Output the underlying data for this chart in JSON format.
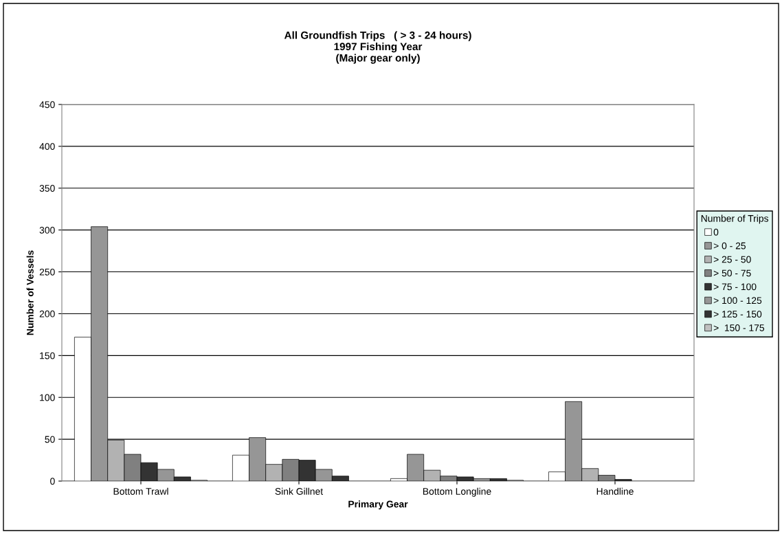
{
  "chart_data": {
    "type": "bar",
    "title": "All Groundfish Trips   ( > 3 - 24 hours)\n1997 Fishing Year\n(Major gear only)",
    "xlabel": "Primary Gear",
    "ylabel": "Number of Vessels",
    "legend_title": "Number of Trips",
    "categories": [
      "Bottom Trawl",
      "Sink Gillnet",
      "Bottom Longline",
      "Handline"
    ],
    "series": [
      {
        "name": "0",
        "color": "#ffffff",
        "values": [
          172,
          31,
          3,
          11
        ]
      },
      {
        "name": "> 0 - 25",
        "color": "#969696",
        "values": [
          304,
          52,
          32,
          95
        ]
      },
      {
        "name": "> 25 - 50",
        "color": "#b2b2b2",
        "values": [
          49,
          20,
          13,
          15
        ]
      },
      {
        "name": "> 50 - 75",
        "color": "#808080",
        "values": [
          32,
          26,
          6,
          7
        ]
      },
      {
        "name": "> 75 - 100",
        "color": "#333333",
        "values": [
          22,
          25,
          5,
          2
        ]
      },
      {
        "name": "> 100 - 125",
        "color": "#969696",
        "values": [
          14,
          14,
          3,
          null
        ]
      },
      {
        "name": "> 125 - 150",
        "color": "#333333",
        "values": [
          5,
          6,
          3,
          null
        ]
      },
      {
        "name": ">  150 - 175",
        "color": "#c0c0c0",
        "values": [
          1,
          null,
          1,
          null
        ]
      }
    ],
    "ylim": [
      0,
      450
    ],
    "yticks": [
      0,
      50,
      100,
      150,
      200,
      250,
      300,
      350,
      400,
      450
    ],
    "grid": "y",
    "legend": "right"
  }
}
